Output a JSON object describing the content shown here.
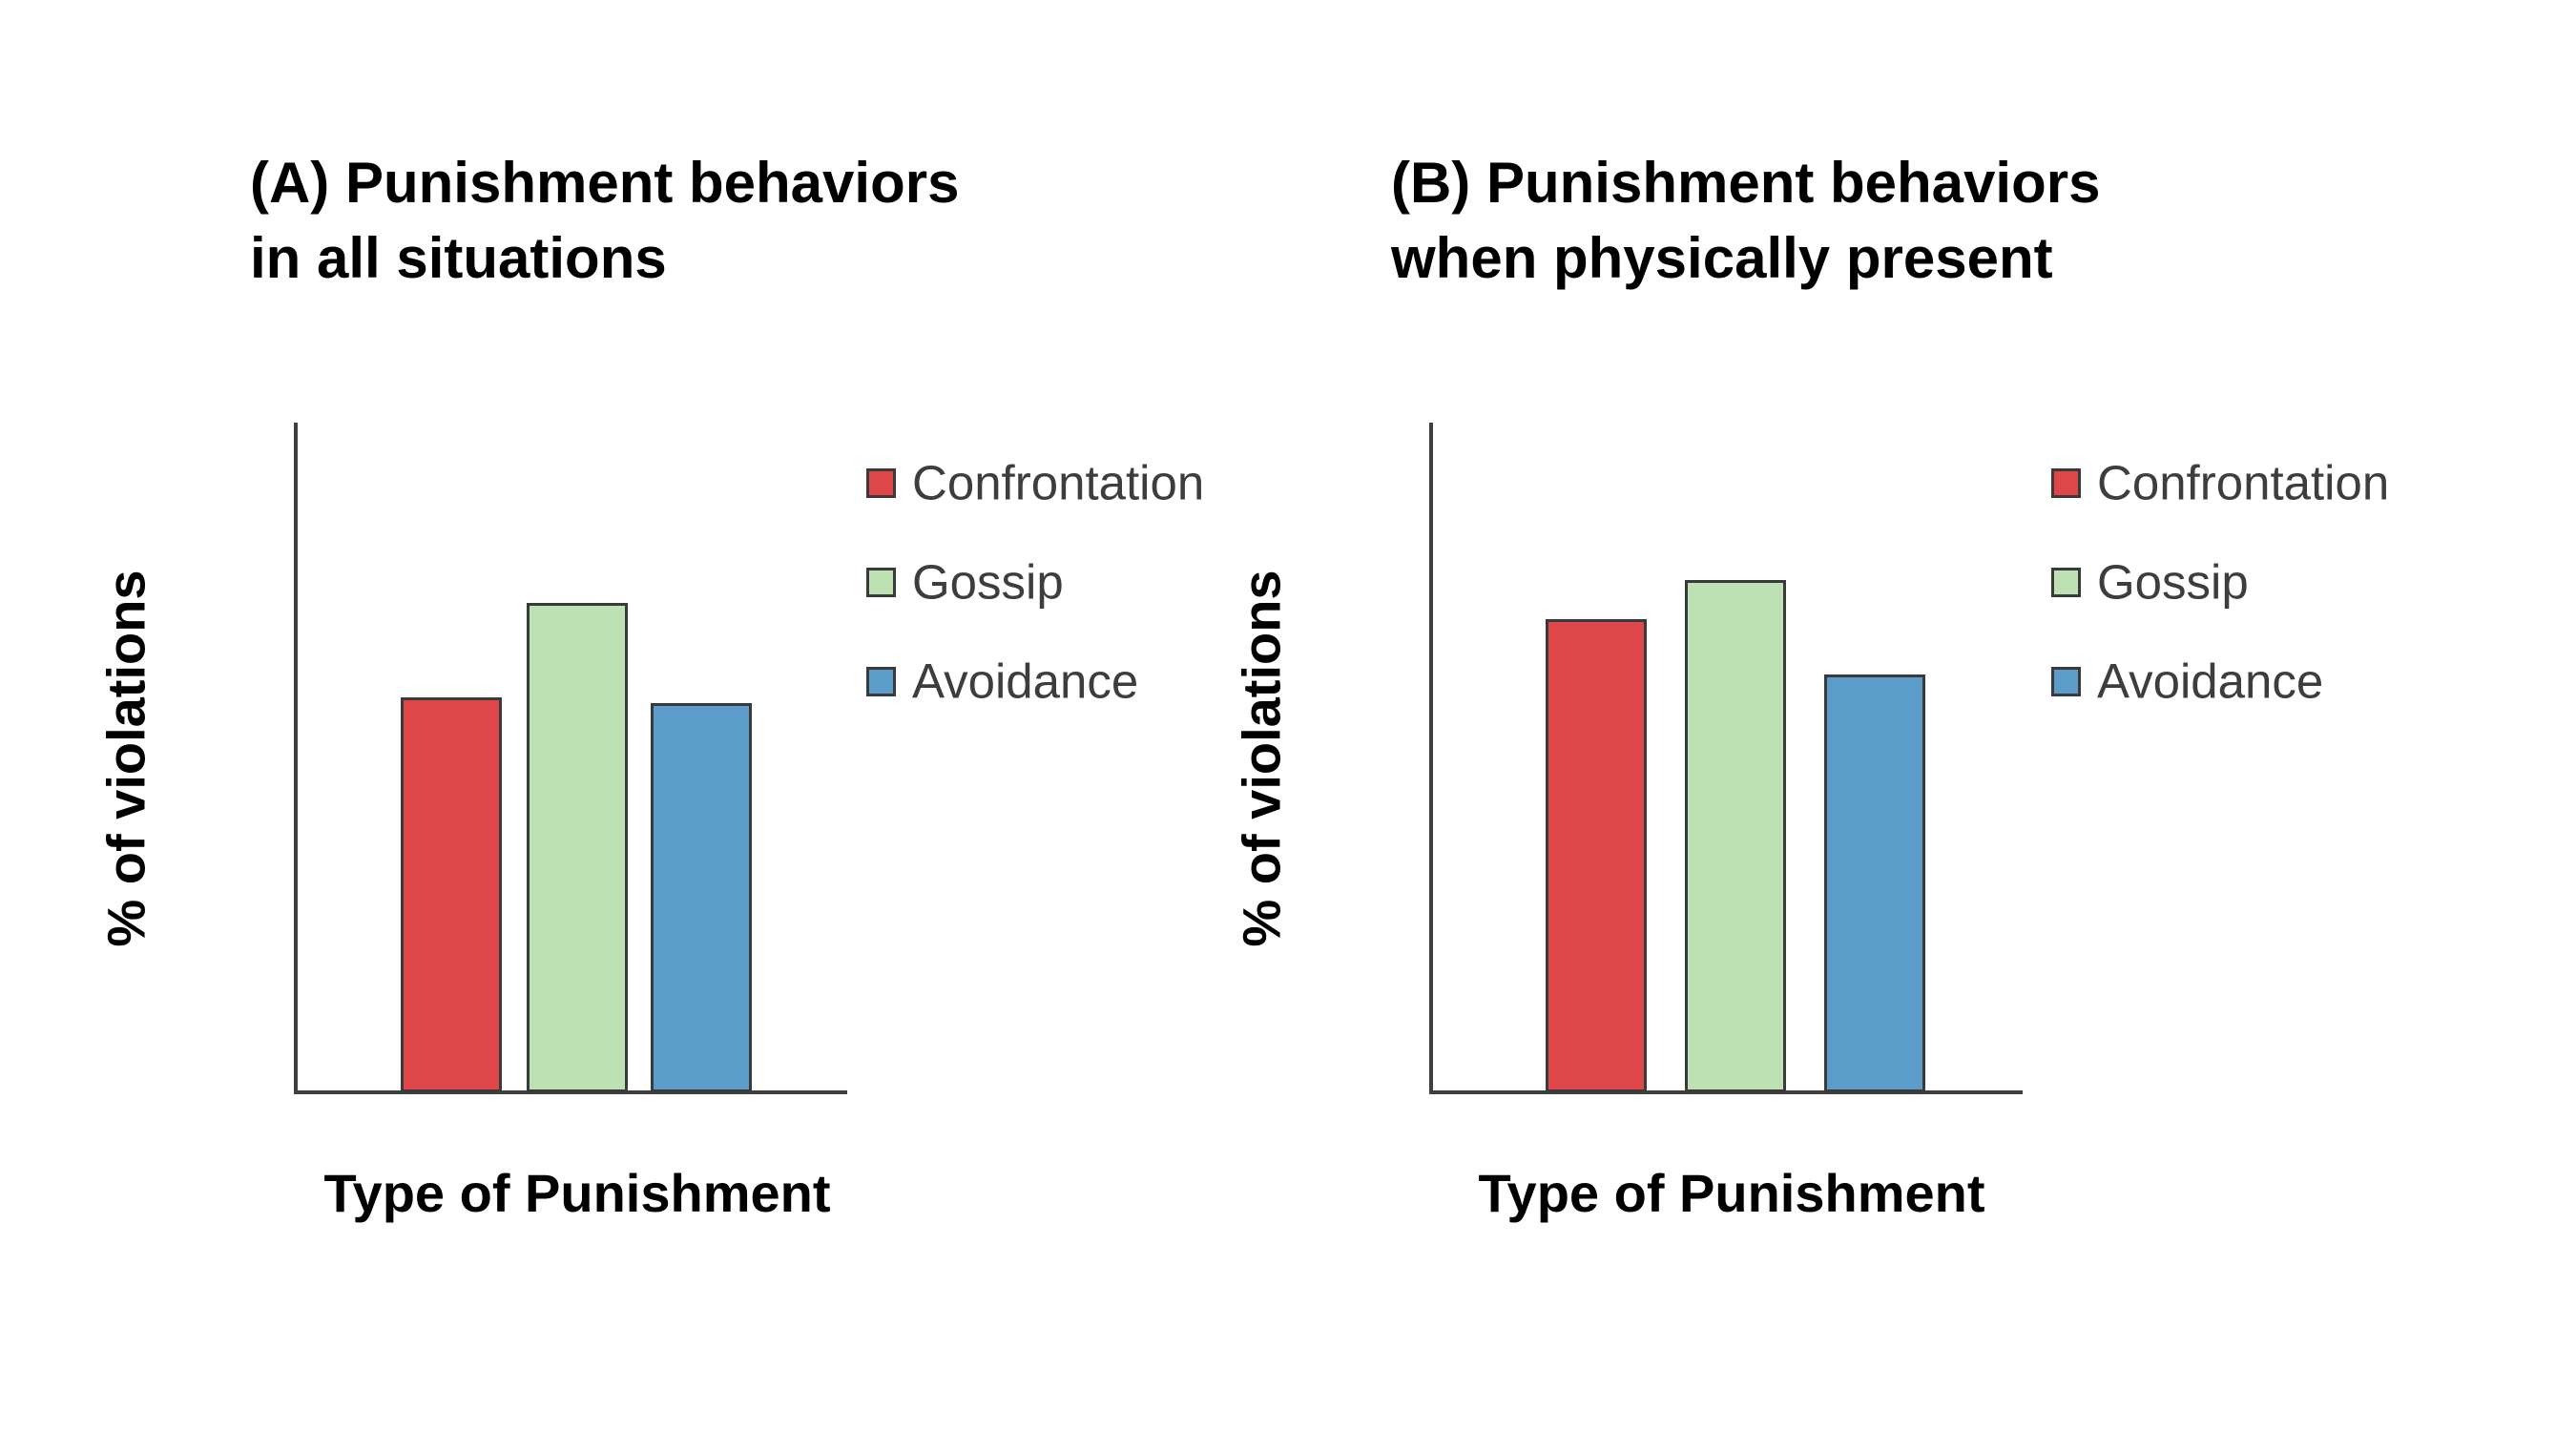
{
  "page": {
    "background": "#ffffff"
  },
  "chart_data": [
    {
      "type": "bar",
      "panel": "A",
      "title": "(A) Punishment behaviors in all situations",
      "title_line1": "(A) Punishment behaviors",
      "title_line2": "in all situations",
      "xlabel": "Type of Punishment",
      "ylabel": "% of violations",
      "ylim": [
        0,
        60
      ],
      "yticks": [
        0,
        10,
        20,
        30,
        40,
        50,
        60
      ],
      "grid": false,
      "legend_position": "right",
      "categories": [
        "Confrontation",
        "Gossip",
        "Avoidance"
      ],
      "values": [
        35.5,
        44,
        35
      ],
      "colors": [
        "#df4649",
        "#bee1b4",
        "#5b9cca"
      ]
    },
    {
      "type": "bar",
      "panel": "B",
      "title": "(B) Punishment behaviors when physically present",
      "title_line1": "(B) Punishment behaviors",
      "title_line2": "when physically present",
      "xlabel": "Type of Punishment",
      "ylabel": "% of violations",
      "ylim": [
        0,
        60
      ],
      "yticks": [
        0,
        10,
        20,
        30,
        40,
        50,
        60
      ],
      "grid": false,
      "legend_position": "right",
      "categories": [
        "Confrontation",
        "Gossip",
        "Avoidance"
      ],
      "values": [
        42.5,
        46,
        37.5
      ],
      "colors": [
        "#df4649",
        "#bee1b4",
        "#5b9cca"
      ]
    }
  ]
}
